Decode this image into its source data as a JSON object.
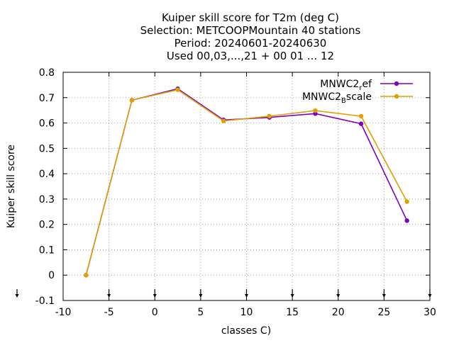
{
  "chart_data": {
    "type": "line",
    "title_lines": [
      "Kuiper skill score  for T2m (deg C)",
      "Selection: METCOOPMountain     40 stations",
      "Period: 20240601-20240630",
      "Used 00,03,...,21 + 00 01 ... 12"
    ],
    "xlabel": "classes C)",
    "ylabel": "Kuiper skill score",
    "xlim": [
      -10,
      30
    ],
    "ylim": [
      -0.1,
      0.8
    ],
    "x_ticks": [
      -10,
      -5,
      0,
      5,
      10,
      15,
      20,
      25,
      30
    ],
    "x_tick_labels": [
      "-10",
      "-5",
      "0",
      "5",
      "10",
      "15",
      "20",
      "25",
      "30"
    ],
    "y_ticks": [
      -0.1,
      0,
      0.1,
      0.2,
      0.3,
      0.4,
      0.5,
      0.6,
      0.7,
      0.8
    ],
    "y_tick_labels": [
      "-0.1",
      "0",
      "0.1",
      "0.2",
      "0.3",
      "0.4",
      "0.5",
      "0.6",
      "0.7",
      "0.8"
    ],
    "grid": true,
    "legend_position": "top-right",
    "series": [
      {
        "name_main": "MNWC2",
        "name_sub": "r",
        "name_rest": "ef",
        "color": "#8000c0",
        "x": [
          -7.5,
          -2.5,
          2.5,
          7.5,
          12.5,
          17.5,
          22.5,
          27.5
        ],
        "y": [
          0.0,
          0.69,
          0.735,
          0.612,
          0.622,
          0.637,
          0.597,
          0.215
        ]
      },
      {
        "name_main": "MNWC2",
        "name_sub": "B",
        "name_rest": "scale",
        "color": "#e0a000",
        "x": [
          -7.5,
          -2.5,
          2.5,
          7.5,
          12.5,
          17.5,
          22.5,
          27.5
        ],
        "y": [
          0.0,
          0.69,
          0.731,
          0.608,
          0.627,
          0.649,
          0.627,
          0.29
        ]
      }
    ]
  }
}
